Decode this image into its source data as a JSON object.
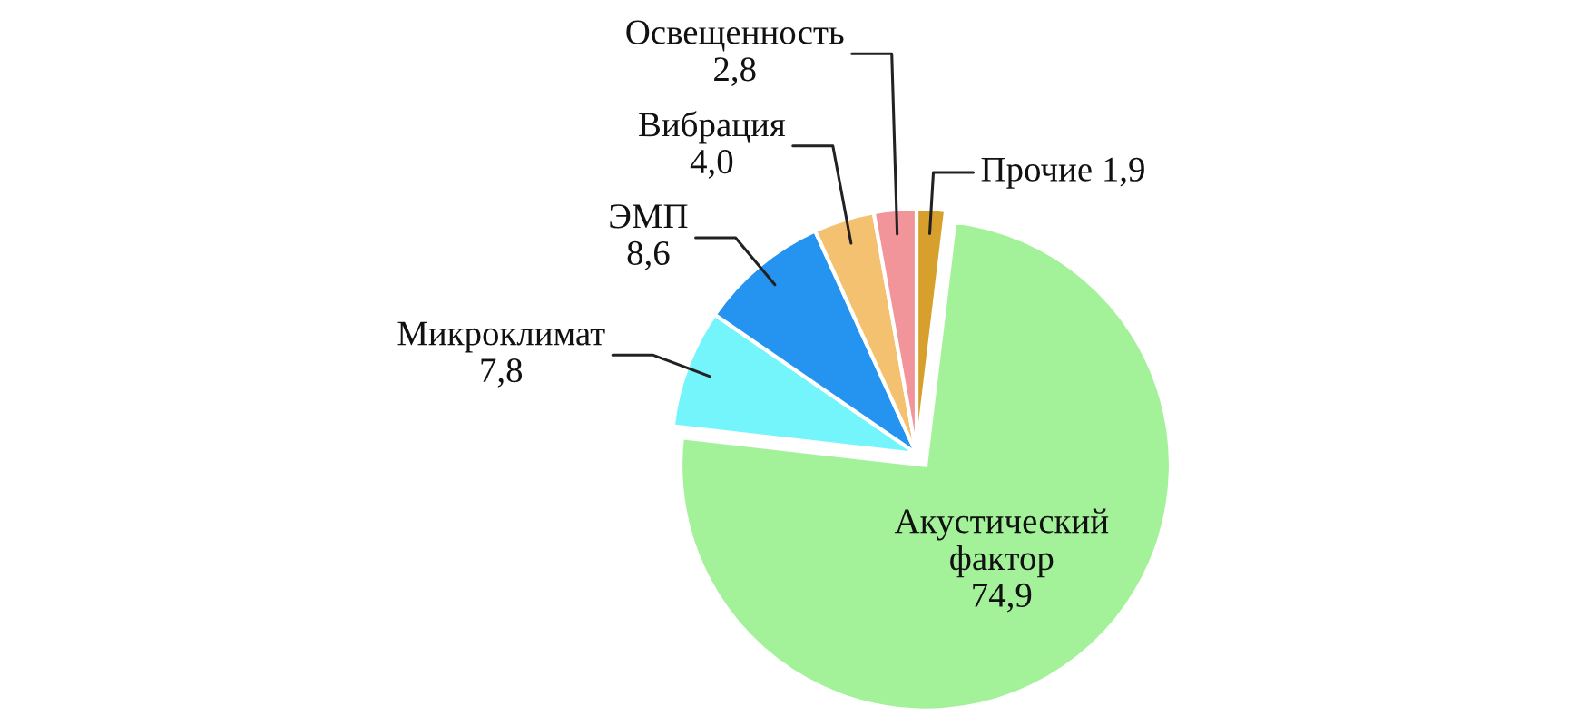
{
  "chart_data": {
    "type": "pie",
    "categories": [
      "Прочие",
      "Акустический фактор",
      "Микроклимат",
      "ЭМП",
      "Вибрация",
      "Освещенность"
    ],
    "values": [
      1.9,
      74.9,
      7.8,
      8.6,
      4.0,
      2.8
    ],
    "value_labels": [
      "1,9",
      "74,9",
      "7,8",
      "8,6",
      "4,0",
      "2,8"
    ],
    "colors": [
      "#d7a02c",
      "#a3f29a",
      "#74f5fb",
      "#2593f0",
      "#f4c170",
      "#f2959b"
    ]
  }
}
